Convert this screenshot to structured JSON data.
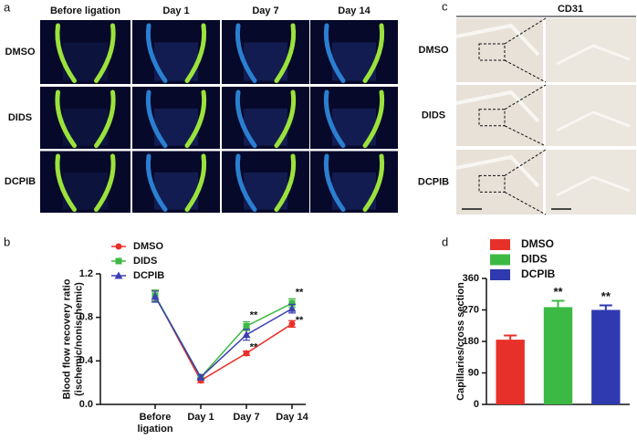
{
  "panel_a": {
    "label": "a",
    "columns": [
      "Before ligation",
      "Day 1",
      "Day 7",
      "Day 14"
    ],
    "rows": [
      "DMSO",
      "DIDS",
      "DCPIB"
    ]
  },
  "panel_c": {
    "label": "c",
    "title": "CD31",
    "rows": [
      "DMSO",
      "DIDS",
      "DCPIB"
    ]
  },
  "chart_data": [
    {
      "type": "line",
      "label": "b",
      "ylabel": [
        "Blood flow recovery ratio",
        "(ischemic/nonischemic)"
      ],
      "categories": [
        "Before ligation",
        "Day 1",
        "Day 7",
        "Day 14"
      ],
      "series": [
        {
          "name": "DMSO",
          "color": "#e8302a",
          "marker": "circle",
          "values": [
            1.0,
            0.22,
            0.47,
            0.74
          ],
          "errors": [
            0.05,
            0.02,
            0.02,
            0.03
          ],
          "significance": [
            null,
            null,
            null,
            null
          ]
        },
        {
          "name": "DIDS",
          "color": "#3cb944",
          "marker": "square",
          "values": [
            1.0,
            0.25,
            0.72,
            0.93
          ],
          "errors": [
            0.05,
            0.02,
            0.04,
            0.04
          ],
          "significance": [
            null,
            null,
            "**",
            "**"
          ]
        },
        {
          "name": "DCPIB",
          "color": "#3b3fb0",
          "marker": "triangle",
          "values": [
            0.99,
            0.25,
            0.64,
            0.88
          ],
          "errors": [
            0.05,
            0.02,
            0.05,
            0.04
          ],
          "significance": [
            null,
            null,
            "**",
            "**"
          ]
        }
      ],
      "ylim": [
        0,
        1.2
      ],
      "yticks": [
        {
          "value": 0,
          "label": "0.0"
        },
        0.4,
        0.8,
        1.2
      ]
    },
    {
      "type": "bar",
      "label": "d",
      "ylabel": [
        "Capillaries/cross section"
      ],
      "categories": [
        "DMSO",
        "DIDS",
        "DCPIB"
      ],
      "colors": [
        "#e8302a",
        "#3cb944",
        "#2f3ab0"
      ],
      "values": [
        185,
        278,
        270
      ],
      "errors": [
        12,
        18,
        13
      ],
      "significance": [
        null,
        "**",
        "**"
      ],
      "ylim": [
        0,
        360
      ],
      "yticks": [
        0,
        90,
        180,
        270,
        360
      ]
    }
  ]
}
